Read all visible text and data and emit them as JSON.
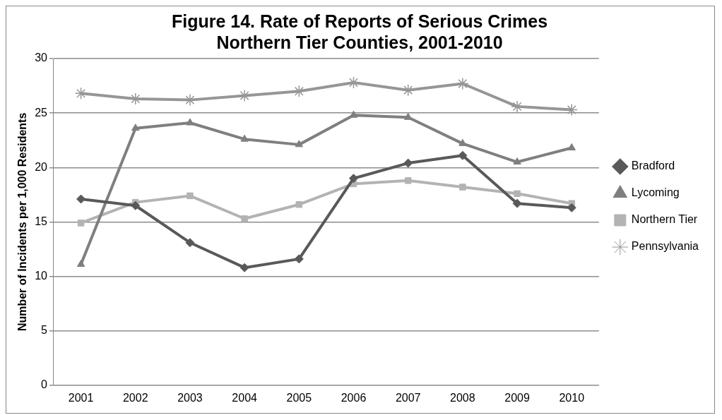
{
  "chart_data": {
    "type": "line",
    "title": "Figure 14. Rate of Reports of Serious Crimes\nNorthern Tier Counties, 2001-2010",
    "ylabel": "Number of Incidents per 1,000 Residents",
    "categories": [
      "2001",
      "2002",
      "2003",
      "2004",
      "2005",
      "2006",
      "2007",
      "2008",
      "2009",
      "2010"
    ],
    "series": [
      {
        "name": "Bradford",
        "color": "#595959",
        "marker": "diamond",
        "values": [
          17.1,
          16.5,
          13.1,
          10.8,
          11.6,
          19.0,
          20.4,
          21.1,
          16.7,
          16.3
        ]
      },
      {
        "name": "Lycoming",
        "color": "#7f7f7f",
        "marker": "triangle",
        "values": [
          11.1,
          23.6,
          24.1,
          22.6,
          22.1,
          24.8,
          24.6,
          22.2,
          20.5,
          21.8
        ]
      },
      {
        "name": "Northern Tier",
        "color": "#b3b3b3",
        "marker": "square",
        "values": [
          14.9,
          16.8,
          17.4,
          15.3,
          16.6,
          18.5,
          18.8,
          18.2,
          17.6,
          16.7
        ]
      },
      {
        "name": "Pennsylvania",
        "color": "#969696",
        "marker": "cross",
        "values": [
          26.8,
          26.3,
          26.2,
          26.6,
          27.0,
          27.8,
          27.1,
          27.7,
          25.6,
          25.3
        ]
      }
    ],
    "ylim": [
      0,
      30
    ],
    "yticks": [
      0,
      5,
      10,
      15,
      20,
      25,
      30
    ],
    "grid": "y",
    "legend": "right",
    "line_style": "solid"
  }
}
